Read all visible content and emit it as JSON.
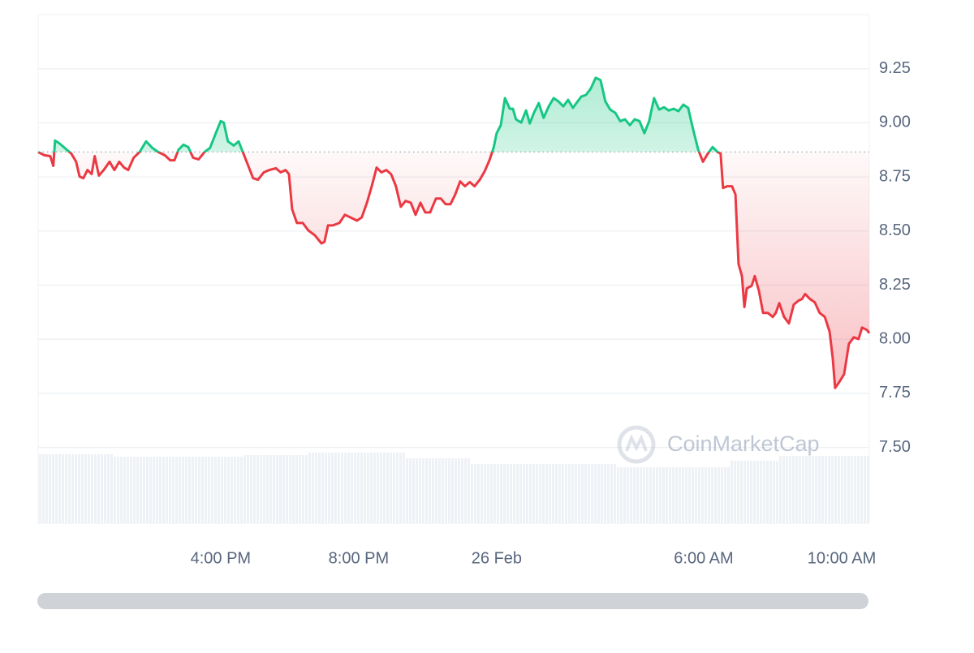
{
  "chart_data": {
    "type": "line",
    "watermark": "CoinMarketCap",
    "x": [
      -13.29,
      -13.11,
      -12.94,
      -12.85,
      -12.8,
      -12.66,
      -12.52,
      -12.33,
      -12.19,
      -12.09,
      -11.98,
      -11.86,
      -11.74,
      -11.65,
      -11.53,
      -11.39,
      -11.22,
      -11.08,
      -10.94,
      -10.8,
      -10.68,
      -10.52,
      -10.35,
      -10.16,
      -9.98,
      -9.81,
      -9.62,
      -9.46,
      -9.34,
      -9.22,
      -9.08,
      -8.94,
      -8.8,
      -8.64,
      -8.47,
      -8.31,
      -8.14,
      -8.0,
      -7.91,
      -7.79,
      -7.62,
      -7.48,
      -7.34,
      -7.2,
      -7.06,
      -6.92,
      -6.75,
      -6.59,
      -6.4,
      -6.26,
      -6.12,
      -6.02,
      -5.93,
      -5.79,
      -5.62,
      -5.46,
      -5.27,
      -5.08,
      -4.99,
      -4.89,
      -4.75,
      -4.56,
      -4.4,
      -4.24,
      -4.05,
      -3.91,
      -3.76,
      -3.62,
      -3.48,
      -3.34,
      -3.2,
      -3.06,
      -2.92,
      -2.78,
      -2.64,
      -2.49,
      -2.35,
      -2.21,
      -2.07,
      -1.93,
      -1.76,
      -1.62,
      -1.48,
      -1.34,
      -1.2,
      -1.06,
      -0.92,
      -0.78,
      -0.64,
      -0.49,
      -0.35,
      -0.21,
      -0.09,
      0,
      0.12,
      0.24,
      0.38,
      0.47,
      0.56,
      0.71,
      0.85,
      0.96,
      1.08,
      1.22,
      1.36,
      1.51,
      1.65,
      1.79,
      1.93,
      2.07,
      2.21,
      2.31,
      2.45,
      2.59,
      2.73,
      2.87,
      3.01,
      3.15,
      3.29,
      3.44,
      3.58,
      3.72,
      3.86,
      4.0,
      4.14,
      4.28,
      4.42,
      4.56,
      4.71,
      4.85,
      4.99,
      5.13,
      5.27,
      5.41,
      5.55,
      5.69,
      5.84,
      5.98,
      6.12,
      6.26,
      6.4,
      6.49,
      6.56,
      6.68,
      6.82,
      6.92,
      7.01,
      7.11,
      7.18,
      7.25,
      7.39,
      7.48,
      7.6,
      7.72,
      7.86,
      8.0,
      8.09,
      8.19,
      8.33,
      8.47,
      8.61,
      8.75,
      8.85,
      8.94,
      9.08,
      9.22,
      9.36,
      9.51,
      9.65,
      9.74,
      9.81,
      9.93,
      10.07,
      10.21,
      10.35,
      10.49,
      10.59,
      10.73,
      10.8
    ],
    "values": [
      8.865,
      8.85,
      8.846,
      8.801,
      8.918,
      8.903,
      8.884,
      8.858,
      8.82,
      8.752,
      8.744,
      8.782,
      8.763,
      8.846,
      8.756,
      8.782,
      8.82,
      8.782,
      8.82,
      8.793,
      8.782,
      8.839,
      8.865,
      8.914,
      8.884,
      8.865,
      8.85,
      8.827,
      8.827,
      8.876,
      8.899,
      8.888,
      8.839,
      8.831,
      8.865,
      8.884,
      8.952,
      9.008,
      9.001,
      8.914,
      8.895,
      8.914,
      8.858,
      8.801,
      8.744,
      8.737,
      8.771,
      8.782,
      8.79,
      8.771,
      8.782,
      8.763,
      8.601,
      8.537,
      8.537,
      8.503,
      8.48,
      8.443,
      8.45,
      8.526,
      8.526,
      8.537,
      8.575,
      8.563,
      8.548,
      8.563,
      8.631,
      8.707,
      8.793,
      8.771,
      8.782,
      8.763,
      8.707,
      8.612,
      8.639,
      8.631,
      8.575,
      8.631,
      8.586,
      8.586,
      8.65,
      8.65,
      8.624,
      8.624,
      8.669,
      8.729,
      8.707,
      8.726,
      8.707,
      8.737,
      8.775,
      8.827,
      8.884,
      8.952,
      8.989,
      9.114,
      9.065,
      9.065,
      9.016,
      9.001,
      9.057,
      8.997,
      9.046,
      9.091,
      9.023,
      9.076,
      9.114,
      9.099,
      9.076,
      9.106,
      9.069,
      9.091,
      9.121,
      9.129,
      9.159,
      9.208,
      9.197,
      9.099,
      9.061,
      9.046,
      9.008,
      9.016,
      8.989,
      9.016,
      9.008,
      8.952,
      9.008,
      9.114,
      9.061,
      9.072,
      9.057,
      9.065,
      9.054,
      9.084,
      9.069,
      8.971,
      8.876,
      8.82,
      8.858,
      8.888,
      8.865,
      8.858,
      8.699,
      8.707,
      8.707,
      8.669,
      8.348,
      8.292,
      8.149,
      8.235,
      8.247,
      8.292,
      8.224,
      8.122,
      8.122,
      8.103,
      8.122,
      8.167,
      8.103,
      8.073,
      8.16,
      8.179,
      8.186,
      8.209,
      8.186,
      8.171,
      8.122,
      8.103,
      8.035,
      7.915,
      7.775,
      7.802,
      7.839,
      7.979,
      8.009,
      8.001,
      8.054,
      8.043,
      8.028
    ],
    "baseline": 8.865,
    "up_color": "#16c784",
    "down_color": "#ea3943",
    "xlim": [
      -13.29,
      10.8
    ],
    "xticks": [
      {
        "value": -8,
        "label": "4:00 PM"
      },
      {
        "value": -4,
        "label": "8:00 PM"
      },
      {
        "value": 0,
        "label": "26 Feb"
      },
      {
        "value": 6,
        "label": "6:00 AM"
      },
      {
        "value": 10,
        "label": "10:00 AM"
      }
    ],
    "ylim": [
      7.15,
      9.5
    ],
    "yticks": [
      9.25,
      {
        "value": 9,
        "label": "9.00"
      },
      8.75,
      {
        "value": 8.5,
        "label": "8.50"
      },
      8.25,
      {
        "value": 8,
        "label": "8.00"
      },
      7.75,
      {
        "value": 7.5,
        "label": "7.50"
      }
    ],
    "grid": true
  }
}
